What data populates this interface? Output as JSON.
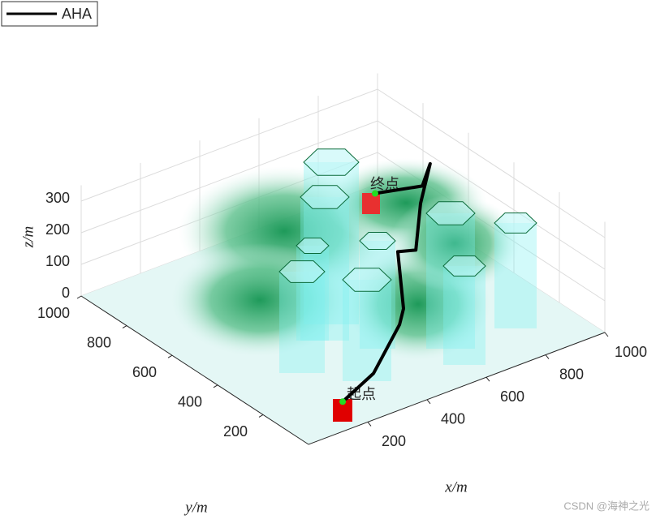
{
  "chart_data": {
    "type": "path3d",
    "series": [
      {
        "name": "AHA",
        "color": "#000000",
        "x": [
          182,
          320,
          535,
          596,
          770,
          814,
          925,
          972,
          934,
          902
        ],
        "y": [
          87,
          131,
          297,
          359,
          611,
          589,
          713,
          732,
          717,
          883
        ],
        "z": [
          30,
          50,
          50,
          50,
          50,
          50,
          100,
          200,
          150,
          60
        ]
      }
    ],
    "xlabel": "x/m",
    "ylabel": "y/m",
    "zlabel": "z/m",
    "xlim": [
      0,
      1000
    ],
    "ylim": [
      0,
      1000
    ],
    "zlim": [
      0,
      350
    ],
    "xticks": [
      200,
      400,
      600,
      800,
      1000
    ],
    "yticks": [
      200,
      400,
      600,
      800,
      1000
    ],
    "zticks": [
      0,
      100,
      200,
      300
    ],
    "start_label": "起点",
    "goal_label": "终点",
    "grid": true,
    "legend": "upper left",
    "watermark": "CSDN @海神之光"
  }
}
